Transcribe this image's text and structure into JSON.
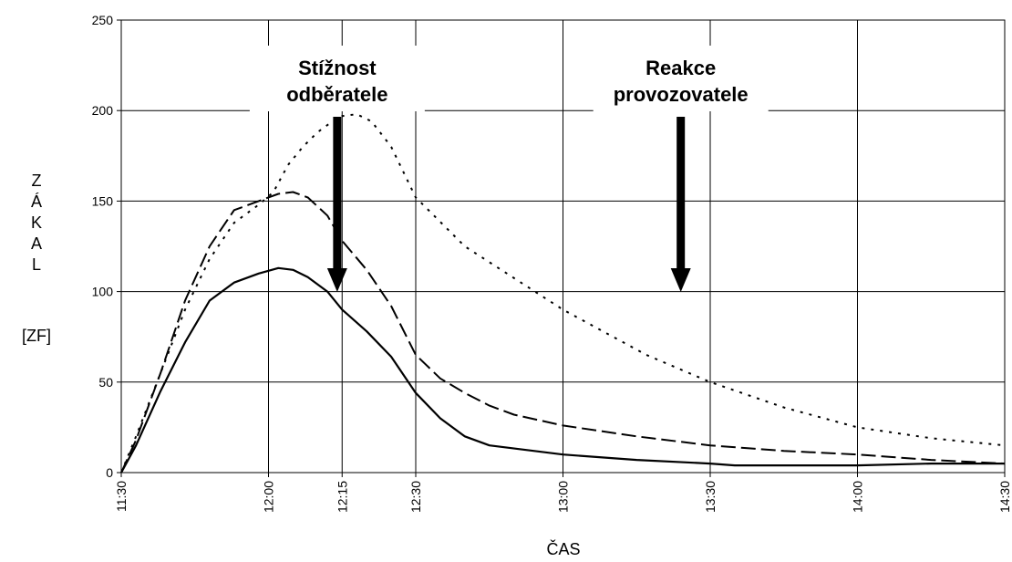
{
  "chart_data": {
    "type": "line",
    "ylabel_letters": [
      "Z",
      "Á",
      "K",
      "A",
      "L"
    ],
    "ylabel_unit": "[ZF]",
    "xlabel": "ČAS",
    "ylim": [
      0,
      250
    ],
    "yticks": [
      0,
      50,
      100,
      150,
      200,
      250
    ],
    "xticks": [
      {
        "minutes": 690,
        "label": "11:30"
      },
      {
        "minutes": 720,
        "label": "12:00"
      },
      {
        "minutes": 735,
        "label": "12:15"
      },
      {
        "minutes": 750,
        "label": "12:30"
      },
      {
        "minutes": 780,
        "label": "13:00"
      },
      {
        "minutes": 810,
        "label": "13:30"
      },
      {
        "minutes": 840,
        "label": "14:00"
      },
      {
        "minutes": 870,
        "label": "14:30"
      }
    ],
    "grid": true,
    "legend": "none",
    "series": [
      {
        "style": "dotted",
        "points": [
          [
            690,
            0
          ],
          [
            693,
            20
          ],
          [
            698,
            55
          ],
          [
            703,
            90
          ],
          [
            708,
            118
          ],
          [
            713,
            138
          ],
          [
            718,
            148
          ],
          [
            721,
            155
          ],
          [
            724,
            170
          ],
          [
            727,
            180
          ],
          [
            730,
            188
          ],
          [
            733,
            194
          ],
          [
            735,
            197
          ],
          [
            738,
            198
          ],
          [
            741,
            194
          ],
          [
            745,
            180
          ],
          [
            750,
            152
          ],
          [
            760,
            125
          ],
          [
            780,
            90
          ],
          [
            797,
            65
          ],
          [
            810,
            50
          ],
          [
            825,
            36
          ],
          [
            840,
            25
          ],
          [
            855,
            19
          ],
          [
            870,
            15
          ]
        ]
      },
      {
        "style": "dashed",
        "points": [
          [
            690,
            0
          ],
          [
            693,
            18
          ],
          [
            698,
            55
          ],
          [
            703,
            95
          ],
          [
            708,
            125
          ],
          [
            713,
            145
          ],
          [
            718,
            150
          ],
          [
            722,
            154
          ],
          [
            725,
            155
          ],
          [
            728,
            152
          ],
          [
            732,
            142
          ],
          [
            735,
            128
          ],
          [
            740,
            112
          ],
          [
            745,
            92
          ],
          [
            750,
            65
          ],
          [
            755,
            52
          ],
          [
            760,
            44
          ],
          [
            765,
            37
          ],
          [
            770,
            32
          ],
          [
            780,
            26
          ],
          [
            795,
            20
          ],
          [
            810,
            15
          ],
          [
            825,
            12
          ],
          [
            840,
            10
          ],
          [
            855,
            7
          ],
          [
            870,
            5
          ]
        ]
      },
      {
        "style": "solid",
        "points": [
          [
            690,
            0
          ],
          [
            693,
            15
          ],
          [
            698,
            45
          ],
          [
            703,
            72
          ],
          [
            708,
            95
          ],
          [
            713,
            105
          ],
          [
            718,
            110
          ],
          [
            722,
            113
          ],
          [
            725,
            112
          ],
          [
            728,
            108
          ],
          [
            732,
            100
          ],
          [
            735,
            90
          ],
          [
            740,
            78
          ],
          [
            745,
            64
          ],
          [
            750,
            44
          ],
          [
            755,
            30
          ],
          [
            760,
            20
          ],
          [
            765,
            15
          ],
          [
            780,
            10
          ],
          [
            795,
            7
          ],
          [
            810,
            5
          ],
          [
            815,
            4
          ],
          [
            825,
            4
          ],
          [
            840,
            4
          ],
          [
            855,
            5
          ],
          [
            870,
            5
          ]
        ]
      }
    ],
    "annotations": [
      {
        "lines": [
          "Stížnost",
          "odběratele"
        ],
        "arrow_minutes": 734
      },
      {
        "lines": [
          "Reakce",
          "provozovatele"
        ],
        "arrow_minutes": 804
      }
    ]
  }
}
